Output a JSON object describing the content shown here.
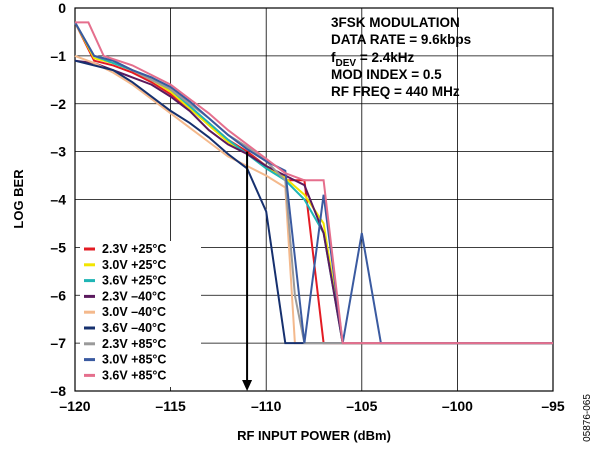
{
  "chart_data": {
    "type": "line",
    "xlabel": "RF INPUT POWER (dBm)",
    "ylabel": "LOG BER",
    "xlim": [
      -120,
      -95
    ],
    "ylim": [
      -8,
      0
    ],
    "x_ticks": [
      -120,
      -115,
      -110,
      -105,
      -100,
      -95
    ],
    "x_tick_labels": [
      "–120",
      "–115",
      "–110",
      "–105",
      "–100",
      "–95"
    ],
    "y_ticks": [
      0,
      -1,
      -2,
      -3,
      -4,
      -5,
      -6,
      -7,
      -8
    ],
    "y_tick_labels": [
      "0",
      "–1",
      "–2",
      "–3",
      "–4",
      "–5",
      "–6",
      "–7",
      "–8"
    ],
    "grid": true,
    "legend_position": "bottom-left",
    "annotation": {
      "line1": "3FSK MODULATION",
      "line2": "DATA RATE = 9.6kbps",
      "line3_prefix": "f",
      "line3_sub": "DEV",
      "line3_suffix": " = 2.4kHz",
      "line4": "MOD INDEX = 0.5",
      "line5": "RF FREQ = 440 MHz"
    },
    "arrow": {
      "x": -111,
      "y_from": -3,
      "y_to": -8
    },
    "figure_code": "05876-065",
    "series": [
      {
        "name": "2.3V +25°C",
        "color": "#e31b23",
        "x": [
          -120,
          -119,
          -118,
          -117,
          -116,
          -115,
          -114,
          -113,
          -112,
          -111,
          -110,
          -109,
          -108,
          -107,
          -106,
          -95
        ],
        "y": [
          -0.3,
          -1.1,
          -1.2,
          -1.35,
          -1.55,
          -1.8,
          -2.1,
          -2.4,
          -2.75,
          -3.0,
          -3.3,
          -3.6,
          -3.6,
          -7.0,
          -7.0,
          -7.0
        ]
      },
      {
        "name": "3.0V +25°C",
        "color": "#f2e500",
        "x": [
          -120,
          -119,
          -118,
          -117,
          -116,
          -115,
          -114,
          -113,
          -112,
          -111,
          -110,
          -109,
          -108,
          -107,
          -106,
          -95
        ],
        "y": [
          -0.3,
          -1.05,
          -1.15,
          -1.3,
          -1.5,
          -1.75,
          -2.1,
          -2.45,
          -2.8,
          -3.05,
          -3.3,
          -3.55,
          -3.9,
          -4.5,
          -7.0,
          -7.0
        ]
      },
      {
        "name": "3.6V +25°C",
        "color": "#1fb5b5",
        "x": [
          -120,
          -119,
          -118,
          -117,
          -116,
          -115,
          -114,
          -113,
          -112,
          -111,
          -110,
          -109,
          -108,
          -107,
          -106,
          -95
        ],
        "y": [
          -0.3,
          -1.0,
          -1.15,
          -1.3,
          -1.45,
          -1.7,
          -2.05,
          -2.4,
          -2.75,
          -3.05,
          -3.35,
          -3.6,
          -4.0,
          -4.7,
          -7.0,
          -7.0
        ]
      },
      {
        "name": "2.3V –40°C",
        "color": "#5b1a5e",
        "x": [
          -120,
          -119,
          -118,
          -117,
          -116,
          -115,
          -114,
          -113,
          -112,
          -111,
          -110,
          -109,
          -108,
          -107,
          -106,
          -95
        ],
        "y": [
          -1.1,
          -1.15,
          -1.3,
          -1.45,
          -1.6,
          -1.85,
          -2.15,
          -2.55,
          -2.85,
          -3.05,
          -3.3,
          -3.5,
          -3.7,
          -4.7,
          -7.0,
          -7.0
        ]
      },
      {
        "name": "3.0V –40°C",
        "color": "#f4b98c",
        "x": [
          -120,
          -119,
          -118,
          -117,
          -116,
          -115,
          -114,
          -113,
          -112,
          -111,
          -110,
          -109,
          -108.5,
          -108,
          -95
        ],
        "y": [
          -1.0,
          -1.15,
          -1.35,
          -1.6,
          -1.9,
          -2.2,
          -2.5,
          -2.8,
          -3.1,
          -3.3,
          -3.5,
          -3.75,
          -7.0,
          -7.0,
          -7.0
        ]
      },
      {
        "name": "3.6V –40°C",
        "color": "#16306e",
        "x": [
          -120,
          -119,
          -118,
          -117,
          -116,
          -115,
          -114,
          -113,
          -112,
          -111,
          -110,
          -109,
          -108.3,
          -107.5,
          -95
        ],
        "y": [
          -1.1,
          -1.2,
          -1.3,
          -1.55,
          -1.85,
          -2.15,
          -2.4,
          -2.7,
          -3.05,
          -3.35,
          -4.25,
          -7.0,
          -7.0,
          -7.0,
          -7.0
        ]
      },
      {
        "name": "2.3V +85°C",
        "color": "#9a9a9a",
        "x": [
          -120,
          -119,
          -118,
          -117,
          -116,
          -115,
          -114,
          -113,
          -112,
          -111,
          -110,
          -109,
          -108.5,
          -108,
          -95
        ],
        "y": [
          -0.3,
          -1.0,
          -1.1,
          -1.3,
          -1.5,
          -1.7,
          -2.0,
          -2.3,
          -2.65,
          -2.9,
          -3.2,
          -3.6,
          -6.0,
          -7.0,
          -7.0
        ]
      },
      {
        "name": "3.0V +85°C",
        "color": "#3a5aa0",
        "x": [
          -120,
          -119,
          -118,
          -117,
          -116,
          -115,
          -114,
          -113,
          -112,
          -111,
          -110,
          -109,
          -108,
          -107,
          -106,
          -105,
          -104,
          -95
        ],
        "y": [
          -0.3,
          -1.0,
          -1.1,
          -1.3,
          -1.45,
          -1.65,
          -1.95,
          -2.3,
          -2.65,
          -2.95,
          -3.2,
          -3.4,
          -7.0,
          -3.9,
          -7.0,
          -4.7,
          -7.0,
          -7.0
        ]
      },
      {
        "name": "3.6V +85°C",
        "color": "#e56f8d",
        "x": [
          -120,
          -119.3,
          -118.5,
          -117,
          -116,
          -115,
          -114,
          -113,
          -112,
          -111,
          -110,
          -109,
          -108,
          -107,
          -106,
          -95
        ],
        "y": [
          -0.3,
          -0.3,
          -1.0,
          -1.2,
          -1.4,
          -1.6,
          -1.9,
          -2.2,
          -2.55,
          -2.85,
          -3.15,
          -3.45,
          -3.6,
          -3.6,
          -7.0,
          -7.0
        ]
      }
    ]
  }
}
